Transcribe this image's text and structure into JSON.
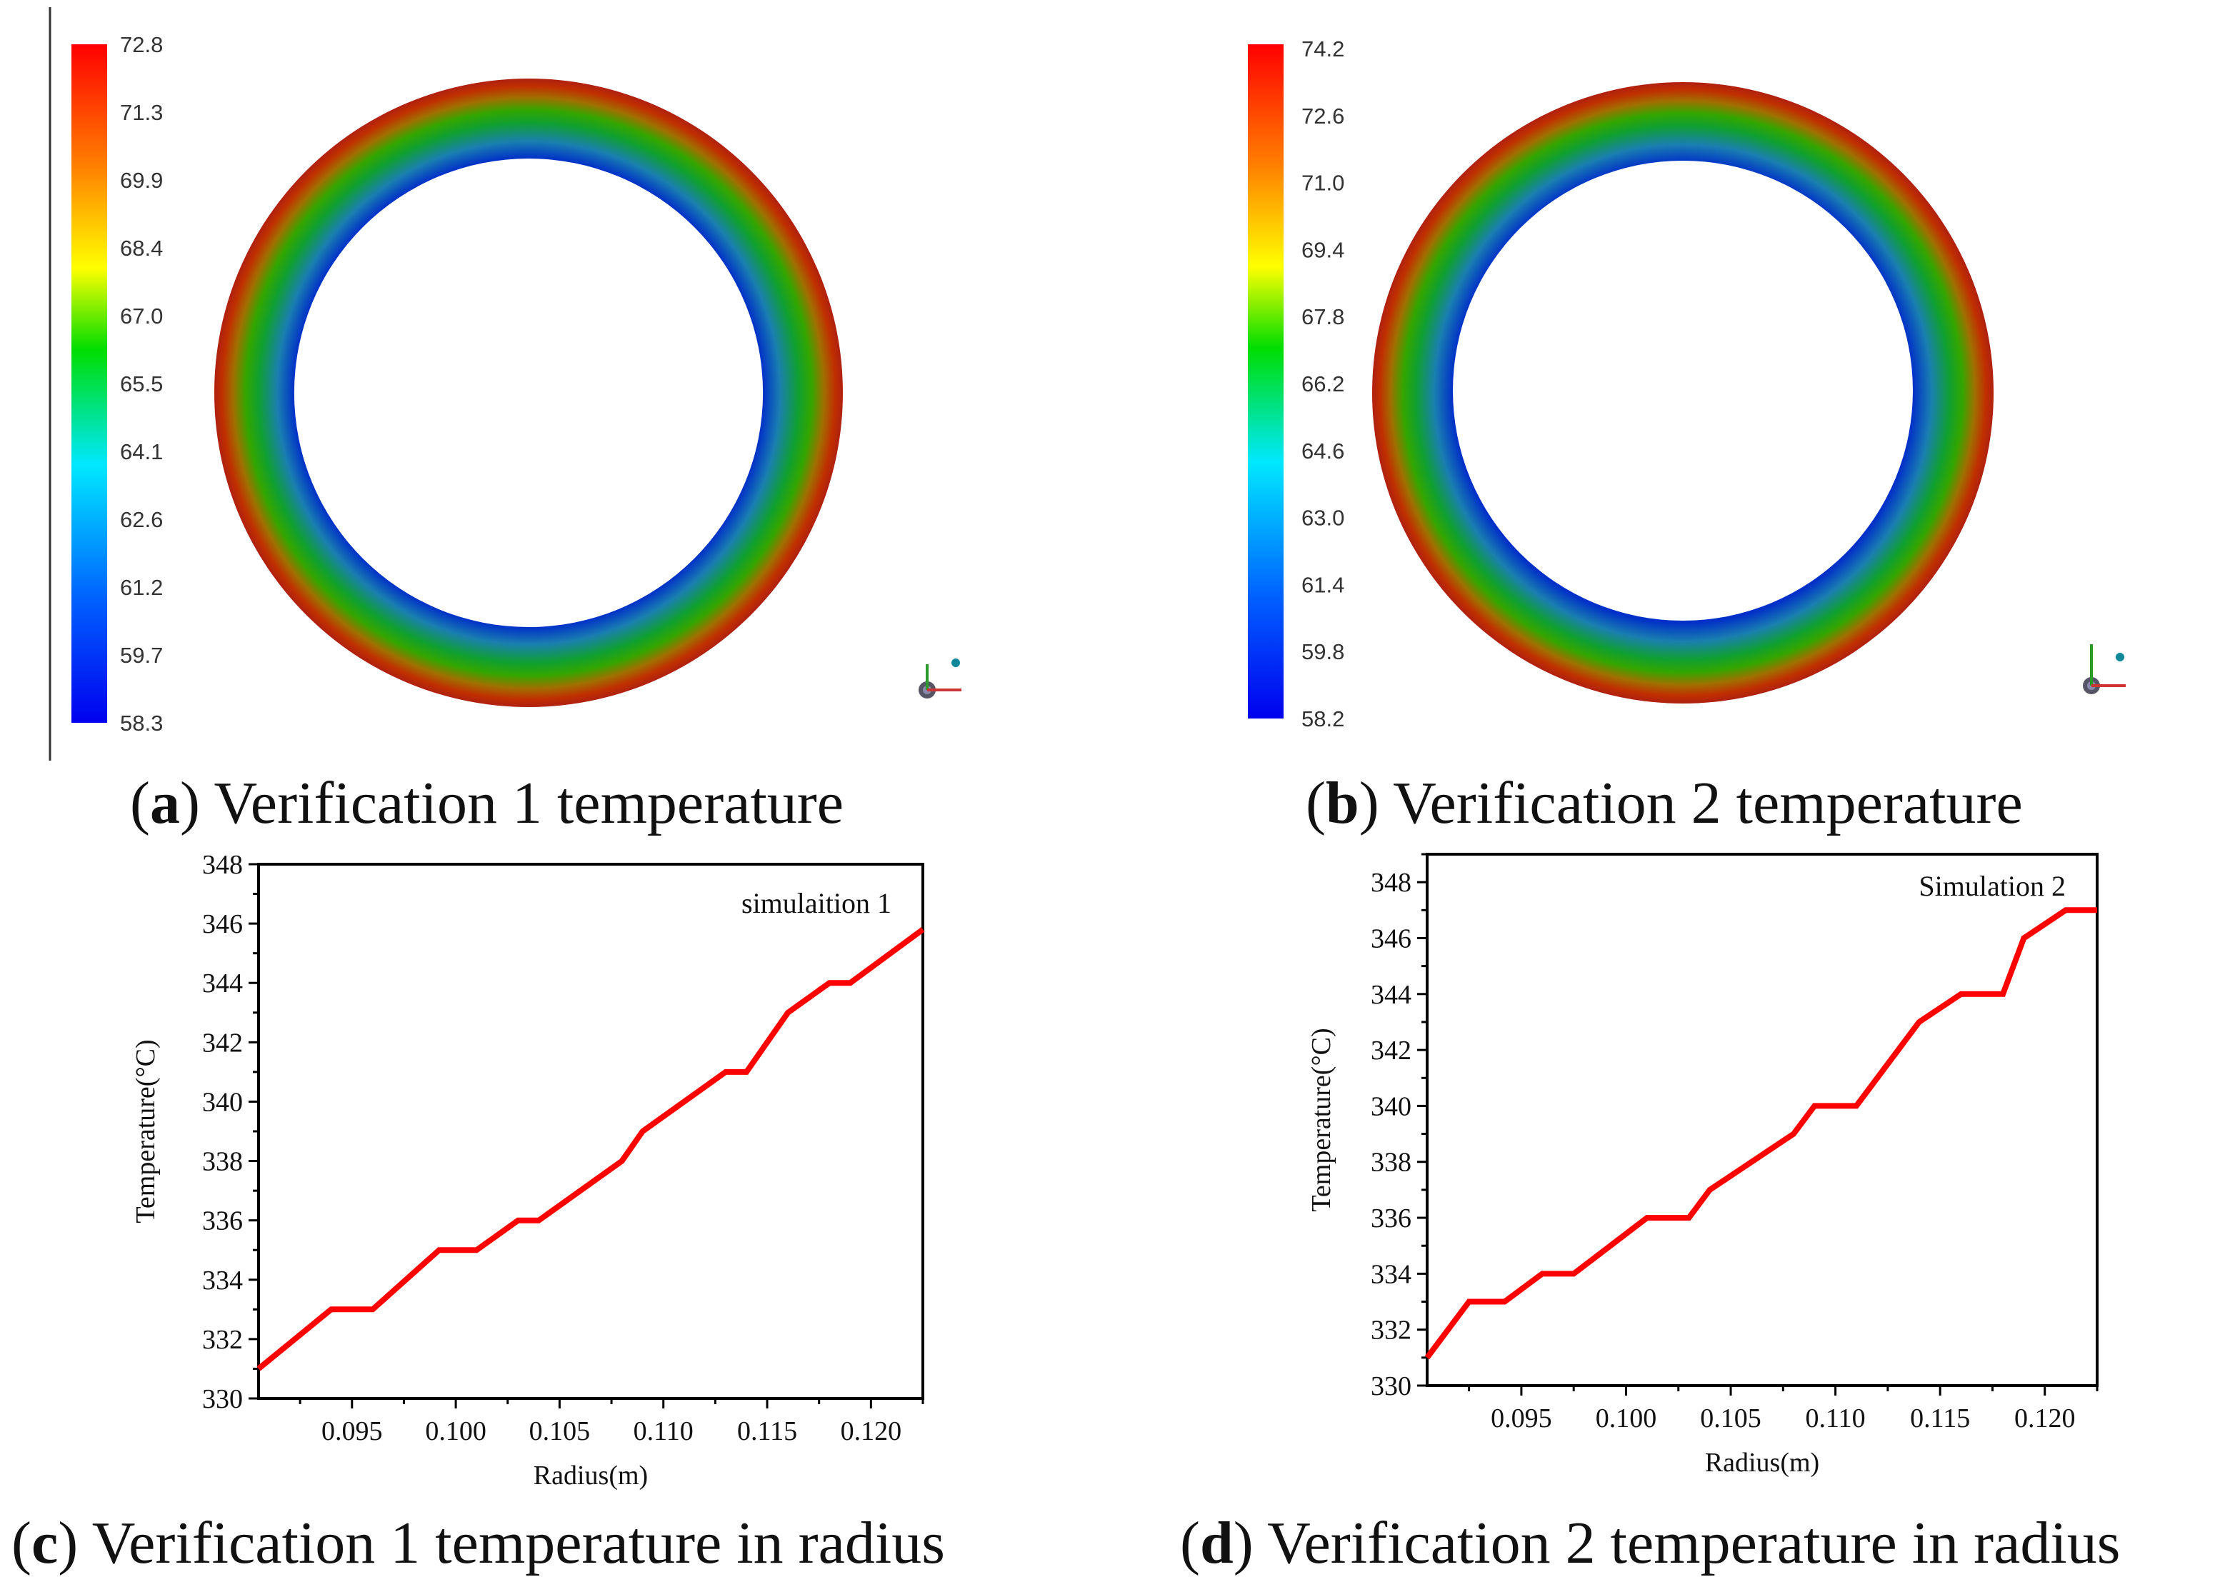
{
  "colors": {
    "series_line": "#ff0000",
    "axis": "#000000",
    "legend_stops": [
      "#ff0000",
      "#ff8000",
      "#ffff00",
      "#00dd00",
      "#00e0ff",
      "#0060ff",
      "#0000ff"
    ]
  },
  "panels": {
    "a": {
      "letter": "a",
      "caption_text": " Verification 1 temperature",
      "legend_values": [
        "72.8",
        "71.3",
        "69.9",
        "68.4",
        "67.0",
        "65.5",
        "64.1",
        "62.6",
        "61.2",
        "59.7",
        "58.3"
      ]
    },
    "b": {
      "letter": "b",
      "caption_text": " Verification 2 temperature",
      "legend_values": [
        "74.2",
        "72.6",
        "71.0",
        "69.4",
        "67.8",
        "66.2",
        "64.6",
        "63.0",
        "61.4",
        "59.8",
        "58.2"
      ]
    },
    "c": {
      "letter": "c",
      "caption_text": " Verification 1 temperature in radius"
    },
    "d": {
      "letter": "d",
      "caption_text": " Verification 2 temperature in radius"
    }
  },
  "chart_data": [
    {
      "type": "line",
      "panel": "c",
      "series_label": "simulaition 1",
      "xlabel": "Radius(m)",
      "ylabel": "Temperature(°C)",
      "xlim": [
        0.0905,
        0.1225
      ],
      "ylim": [
        330,
        348
      ],
      "xticks": [
        "0.095",
        "0.100",
        "0.105",
        "0.110",
        "0.115",
        "0.120"
      ],
      "yticks": [
        "330",
        "332",
        "334",
        "336",
        "338",
        "340",
        "342",
        "344",
        "346",
        "348"
      ],
      "x": [
        0.0905,
        0.094,
        0.096,
        0.0992,
        0.101,
        0.103,
        0.104,
        0.108,
        0.109,
        0.113,
        0.114,
        0.116,
        0.118,
        0.119,
        0.1225
      ],
      "y": [
        331,
        333,
        333,
        335,
        335,
        336,
        336,
        338,
        339,
        341,
        341,
        343,
        344,
        344,
        345.8
      ]
    },
    {
      "type": "line",
      "panel": "d",
      "series_label": "Simulation 2",
      "xlabel": "Radius(m)",
      "ylabel": "Temperature(°C)",
      "xlim": [
        0.0905,
        0.1225
      ],
      "ylim": [
        330,
        349
      ],
      "xticks": [
        "0.095",
        "0.100",
        "0.105",
        "0.110",
        "0.115",
        "0.120"
      ],
      "yticks": [
        "330",
        "332",
        "334",
        "336",
        "338",
        "340",
        "342",
        "344",
        "346",
        "348"
      ],
      "x": [
        0.0905,
        0.0925,
        0.0942,
        0.096,
        0.0975,
        0.101,
        0.103,
        0.104,
        0.108,
        0.109,
        0.111,
        0.114,
        0.116,
        0.118,
        0.119,
        0.121,
        0.1225
      ],
      "y": [
        331,
        333,
        333,
        334,
        334,
        336,
        336,
        337,
        339,
        340,
        340,
        343,
        344,
        344,
        346,
        347,
        347
      ]
    }
  ]
}
